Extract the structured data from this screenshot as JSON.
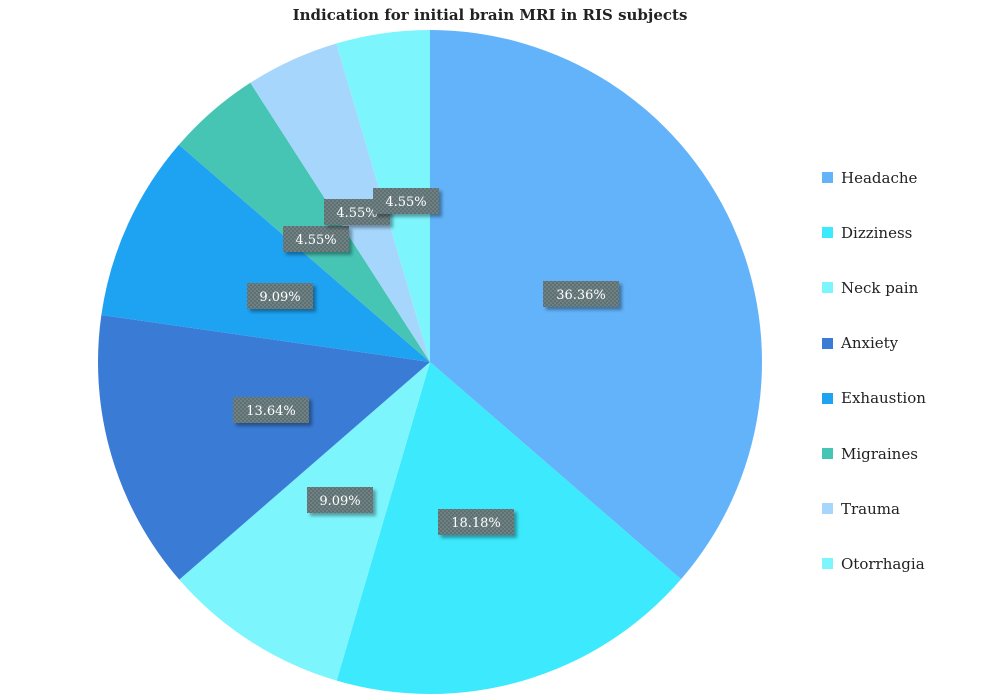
{
  "chart_data": {
    "type": "pie",
    "title": "Indication for initial brain MRI in RIS subjects",
    "categories": [
      "Headache",
      "Dizziness",
      "Neck pain",
      "Anxiety",
      "Exhaustion",
      "Migraines",
      "Trauma",
      "Otorrhagia"
    ],
    "values": [
      36.36,
      18.18,
      9.09,
      13.64,
      9.09,
      4.55,
      4.55,
      4.55
    ],
    "labels": [
      "36.36%",
      "18.18%",
      "9.09%",
      "13.64%",
      "9.09%",
      "4.55%",
      "4.55%",
      "4.55%"
    ],
    "colors": [
      "#63b3fa",
      "#3de9fc",
      "#7df5fc",
      "#3a7bd5",
      "#1ea2f2",
      "#46c4b4",
      "#a6d6fc",
      "#7df5fc"
    ],
    "start_angle_deg": 0,
    "direction": "clockwise",
    "legend_position": "right"
  }
}
